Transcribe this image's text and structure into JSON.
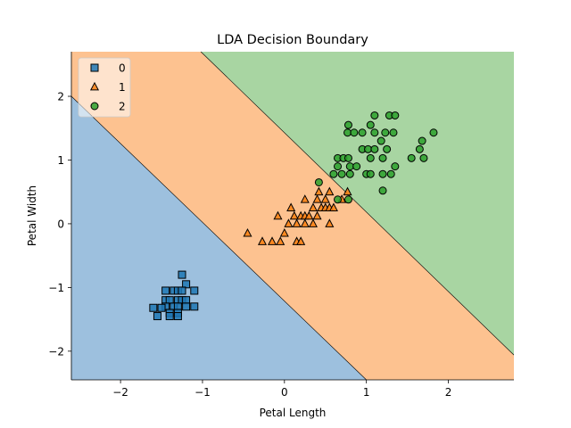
{
  "chart_data": {
    "type": "scatter",
    "title": "LDA Decision Boundary",
    "xlabel": "Petal Length",
    "ylabel": "Petal Width",
    "xlim": [
      -2.6,
      2.8
    ],
    "ylim": [
      -2.45,
      2.7
    ],
    "xticks": [
      -2,
      -1,
      0,
      1,
      2
    ],
    "yticks": [
      -2,
      -1,
      0,
      1,
      2
    ],
    "legend_position": "top-left",
    "regions": [
      {
        "class": "0",
        "color": "#9dc0de"
      },
      {
        "class": "1",
        "color": "#fdc290"
      },
      {
        "class": "2",
        "color": "#a8d5a2"
      }
    ],
    "boundaries": [
      {
        "between": [
          "0",
          "1"
        ],
        "points": [
          [
            -2.6,
            2.0
          ],
          [
            1.0,
            -2.45
          ]
        ]
      },
      {
        "between": [
          "1",
          "2"
        ],
        "points": [
          [
            -1.02,
            2.7
          ],
          [
            2.8,
            -2.06
          ]
        ]
      }
    ],
    "series": [
      {
        "name": "0",
        "marker": "square",
        "color": "#1f77b4",
        "points": [
          [
            -1.25,
            -0.8
          ],
          [
            -1.2,
            -0.95
          ],
          [
            -1.45,
            -1.05
          ],
          [
            -1.35,
            -1.05
          ],
          [
            -1.3,
            -1.05
          ],
          [
            -1.25,
            -1.05
          ],
          [
            -1.1,
            -1.05
          ],
          [
            -1.45,
            -1.2
          ],
          [
            -1.4,
            -1.2
          ],
          [
            -1.3,
            -1.2
          ],
          [
            -1.25,
            -1.2
          ],
          [
            -1.2,
            -1.2
          ],
          [
            -1.45,
            -1.3
          ],
          [
            -1.35,
            -1.3
          ],
          [
            -1.3,
            -1.3
          ],
          [
            -1.2,
            -1.3
          ],
          [
            -1.1,
            -1.3
          ],
          [
            -1.6,
            -1.32
          ],
          [
            -1.5,
            -1.32
          ],
          [
            -1.4,
            -1.4
          ],
          [
            -1.3,
            -1.4
          ],
          [
            -1.55,
            -1.45
          ],
          [
            -1.4,
            -1.45
          ],
          [
            -1.3,
            -1.45
          ]
        ]
      },
      {
        "name": "1",
        "marker": "triangle",
        "color": "#ff7f0e",
        "points": [
          [
            -0.45,
            -0.15
          ],
          [
            -0.27,
            -0.28
          ],
          [
            -0.15,
            -0.28
          ],
          [
            -0.05,
            -0.28
          ],
          [
            0.15,
            -0.28
          ],
          [
            0.2,
            -0.28
          ],
          [
            0.0,
            -0.15
          ],
          [
            0.05,
            0.0
          ],
          [
            0.15,
            0.0
          ],
          [
            0.25,
            0.0
          ],
          [
            0.35,
            0.0
          ],
          [
            0.55,
            0.0
          ],
          [
            -0.08,
            0.12
          ],
          [
            0.12,
            0.12
          ],
          [
            0.2,
            0.12
          ],
          [
            0.25,
            0.12
          ],
          [
            0.3,
            0.12
          ],
          [
            0.4,
            0.12
          ],
          [
            0.08,
            0.25
          ],
          [
            0.35,
            0.25
          ],
          [
            0.45,
            0.25
          ],
          [
            0.5,
            0.25
          ],
          [
            0.55,
            0.25
          ],
          [
            0.6,
            0.25
          ],
          [
            0.25,
            0.38
          ],
          [
            0.4,
            0.38
          ],
          [
            0.5,
            0.38
          ],
          [
            0.7,
            0.38
          ],
          [
            0.42,
            0.5
          ],
          [
            0.55,
            0.5
          ],
          [
            0.77,
            0.5
          ]
        ]
      },
      {
        "name": "2",
        "marker": "circle",
        "color": "#2ca02c",
        "points": [
          [
            0.42,
            0.65
          ],
          [
            0.65,
            0.38
          ],
          [
            0.78,
            0.38
          ],
          [
            0.6,
            0.78
          ],
          [
            0.7,
            0.78
          ],
          [
            0.8,
            0.78
          ],
          [
            1.0,
            0.78
          ],
          [
            1.05,
            0.78
          ],
          [
            1.2,
            0.78
          ],
          [
            1.3,
            0.78
          ],
          [
            0.65,
            0.9
          ],
          [
            0.8,
            0.9
          ],
          [
            0.88,
            0.9
          ],
          [
            1.35,
            0.9
          ],
          [
            0.65,
            1.03
          ],
          [
            0.72,
            1.03
          ],
          [
            0.78,
            1.03
          ],
          [
            1.05,
            1.03
          ],
          [
            1.2,
            1.03
          ],
          [
            1.55,
            1.03
          ],
          [
            1.7,
            1.03
          ],
          [
            0.95,
            1.17
          ],
          [
            1.02,
            1.17
          ],
          [
            1.1,
            1.17
          ],
          [
            1.25,
            1.17
          ],
          [
            1.65,
            1.17
          ],
          [
            1.18,
            1.3
          ],
          [
            1.68,
            1.3
          ],
          [
            0.77,
            1.43
          ],
          [
            0.85,
            1.43
          ],
          [
            0.95,
            1.43
          ],
          [
            1.1,
            1.43
          ],
          [
            1.23,
            1.43
          ],
          [
            1.33,
            1.43
          ],
          [
            1.82,
            1.43
          ],
          [
            0.78,
            1.55
          ],
          [
            1.05,
            1.55
          ],
          [
            1.1,
            1.7
          ],
          [
            1.28,
            1.7
          ],
          [
            1.35,
            1.7
          ],
          [
            1.2,
            0.52
          ]
        ]
      }
    ]
  }
}
